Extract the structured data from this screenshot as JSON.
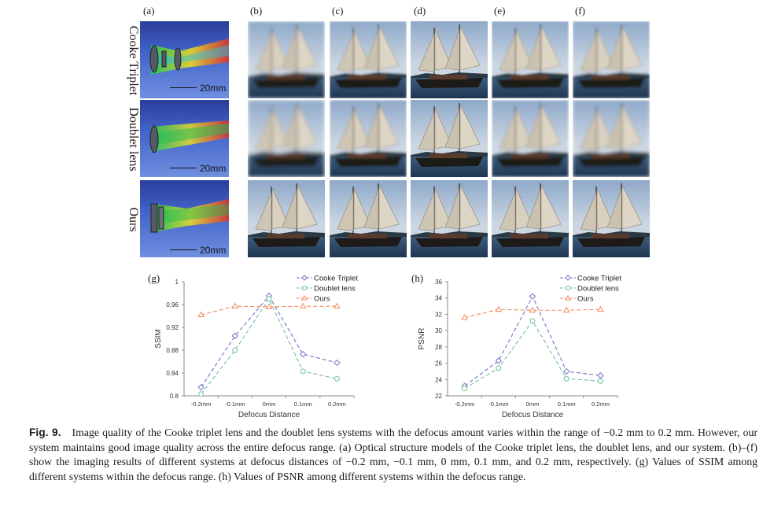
{
  "panel_labels": {
    "a": "(a)",
    "b": "(b)",
    "c": "(c)",
    "d": "(d)",
    "e": "(e)",
    "f": "(f)",
    "g": "(g)",
    "h": "(h)"
  },
  "rows": [
    {
      "label": "Cooke Triplet",
      "scale": "20mm"
    },
    {
      "label": "Doublet lens",
      "scale": "20mm"
    },
    {
      "label": "Ours",
      "scale": "20mm"
    }
  ],
  "caption": {
    "fig_label": "Fig. 9.",
    "text": "Image quality of the Cooke triplet lens and the doublet lens systems with the defocus amount varies within the range of −0.2 mm to 0.2 mm. However, our system maintains good image quality across the entire defocus range. (a) Optical structure models of the Cooke triplet lens, the doublet lens, and our system. (b)–(f) show the imaging results of different systems at defocus distances of −0.2 mm, −0.1 mm, 0 mm, 0.1 mm, and 0.2 mm, respectively. (g) Values of SSIM among different systems within the defocus range. (h) Values of PSNR among different systems within the defocus range."
  },
  "chart_data": [
    {
      "id": "g",
      "type": "line",
      "title": "",
      "xlabel": "Defocus Distance",
      "ylabel": "SSIM",
      "categories": [
        "-0.2mm",
        "-0.1mm",
        "0mm",
        "0.1mm",
        "0.2mm"
      ],
      "ylim": [
        0.8,
        1.0
      ],
      "yticks": [
        "0.8",
        "0.84",
        "0.88",
        "0.92",
        "0.96",
        "1"
      ],
      "series": [
        {
          "name": "Cooke Triplet",
          "color": "#7b6fc9",
          "marker": "diamond",
          "values": [
            0.815,
            0.905,
            0.975,
            0.873,
            0.858
          ]
        },
        {
          "name": "Doublet lens",
          "color": "#6fbf9f",
          "marker": "circle",
          "values": [
            0.803,
            0.88,
            0.97,
            0.843,
            0.83
          ]
        },
        {
          "name": "Ours",
          "color": "#f08a5d",
          "marker": "triangle",
          "values": [
            0.942,
            0.957,
            0.956,
            0.957,
            0.957
          ]
        }
      ]
    },
    {
      "id": "h",
      "type": "line",
      "title": "",
      "xlabel": "Defocus Distance",
      "ylabel": "PSNR",
      "categories": [
        "-0.2mm",
        "-0.1mm",
        "0mm",
        "0.1mm",
        "0.2mm"
      ],
      "ylim": [
        22,
        36
      ],
      "yticks": [
        "22",
        "24",
        "26",
        "28",
        "30",
        "32",
        "34",
        "36"
      ],
      "series": [
        {
          "name": "Cooke Triplet",
          "color": "#7b6fc9",
          "marker": "diamond",
          "values": [
            23.2,
            26.3,
            34.2,
            25.0,
            24.5
          ]
        },
        {
          "name": "Doublet lens",
          "color": "#6fbf9f",
          "marker": "circle",
          "values": [
            22.9,
            25.4,
            31.2,
            24.1,
            23.8
          ]
        },
        {
          "name": "Ours",
          "color": "#f08a5d",
          "marker": "triangle",
          "values": [
            31.6,
            32.6,
            32.5,
            32.5,
            32.6
          ]
        }
      ]
    }
  ]
}
